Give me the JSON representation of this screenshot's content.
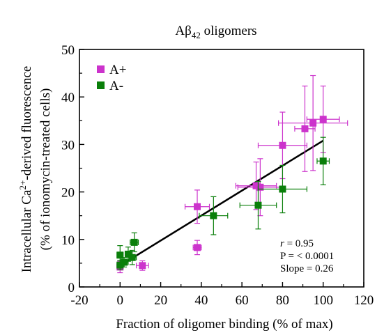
{
  "chart_data": {
    "type": "scatter",
    "title": "Aβ42 oligomers",
    "title_main": "Aβ",
    "title_sub": "42",
    "title_rest": " oligomers",
    "xlabel": "Fraction of oligomer binding (% of max)",
    "ylabel_line1_pre": "Intracellular Ca",
    "ylabel_line1_sup": "2+",
    "ylabel_line1_post": "-derived fluorescence",
    "ylabel_line2": "(% of ionomycin-treated cells)",
    "xlim": [
      -20,
      120
    ],
    "ylim": [
      0,
      50
    ],
    "xticks": [
      -20,
      0,
      20,
      40,
      60,
      80,
      100,
      120
    ],
    "yticks": [
      0,
      10,
      20,
      30,
      40,
      50
    ],
    "grid": false,
    "legend_position": "top-left",
    "series": [
      {
        "name": "A+",
        "color": "#cc33cc",
        "points": [
          {
            "x": 0,
            "y": 4.2,
            "xerr": 1.5,
            "yerr": 1.2
          },
          {
            "x": 11,
            "y": 4.5,
            "xerr": 3,
            "yerr": 1.0
          },
          {
            "x": 38,
            "y": 8.3,
            "xerr": 2,
            "yerr": 1.5
          },
          {
            "x": 38,
            "y": 16.9,
            "xerr": 6,
            "yerr": 3.5
          },
          {
            "x": 67,
            "y": 21.3,
            "xerr": 10,
            "yerr": 5
          },
          {
            "x": 69,
            "y": 21.0,
            "xerr": 11,
            "yerr": 6
          },
          {
            "x": 80,
            "y": 29.8,
            "xerr": 12,
            "yerr": 7
          },
          {
            "x": 91,
            "y": 33.3,
            "xerr": 5,
            "yerr": 9
          },
          {
            "x": 95,
            "y": 34.5,
            "xerr": 17,
            "yerr": 10
          },
          {
            "x": 100,
            "y": 35.3,
            "xerr": 8,
            "yerr": 7
          }
        ]
      },
      {
        "name": "A-",
        "color": "#0a7f0a",
        "points": [
          {
            "x": 0,
            "y": 4.6,
            "xerr": 1.5,
            "yerr": 1.0
          },
          {
            "x": 0,
            "y": 6.7,
            "xerr": 1.5,
            "yerr": 2.0
          },
          {
            "x": 4,
            "y": 6.9,
            "xerr": 1.5,
            "yerr": 1.5
          },
          {
            "x": 2,
            "y": 5.2,
            "xerr": 2,
            "yerr": 1.0
          },
          {
            "x": 6,
            "y": 6.2,
            "xerr": 2,
            "yerr": 1.5
          },
          {
            "x": 7,
            "y": 9.4,
            "xerr": 2,
            "yerr": 2.0
          },
          {
            "x": 46,
            "y": 15.0,
            "xerr": 7,
            "yerr": 4.0
          },
          {
            "x": 68,
            "y": 17.2,
            "xerr": 9,
            "yerr": 5.0
          },
          {
            "x": 80,
            "y": 20.6,
            "xerr": 12,
            "yerr": 5.0
          },
          {
            "x": 100,
            "y": 26.5,
            "xerr": 3,
            "yerr": 5.0
          }
        ]
      }
    ],
    "fit_line": {
      "x": [
        0,
        100
      ],
      "y": [
        4.5,
        30.8
      ],
      "color": "#000000"
    },
    "annotation": {
      "r_symbol": "r",
      "r_value": " = 0.95",
      "p_text": "P = < 0.0001",
      "slope_text": "Slope = 0.26"
    }
  }
}
